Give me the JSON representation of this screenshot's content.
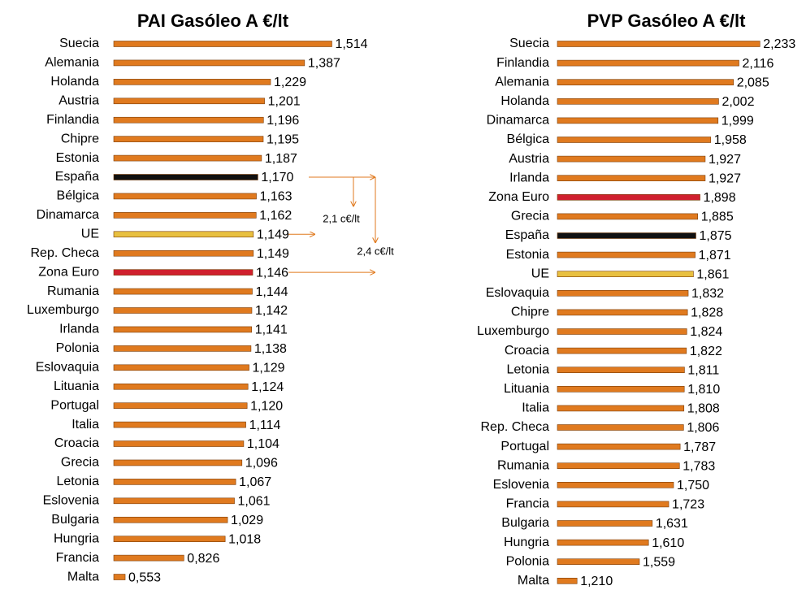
{
  "chart_data": [
    {
      "type": "bar",
      "orientation": "horizontal",
      "title": "PAI Gasóleo A €/lt",
      "categories": [
        "Suecia",
        "Alemania",
        "Holanda",
        "Austria",
        "Finlandia",
        "Chipre",
        "Estonia",
        "España",
        "Bélgica",
        "Dinamarca",
        "UE",
        "Rep. Checa",
        "Zona Euro",
        "Rumania",
        "Luxemburgo",
        "Irlanda",
        "Polonia",
        "Eslovaquia",
        "Lituania",
        "Portugal",
        "Italia",
        "Croacia",
        "Grecia",
        "Letonia",
        "Eslovenia",
        "Bulgaria",
        "Hungria",
        "Francia",
        "Malta"
      ],
      "values": [
        1.514,
        1.387,
        1.229,
        1.201,
        1.196,
        1.195,
        1.187,
        1.17,
        1.163,
        1.162,
        1.149,
        1.149,
        1.146,
        1.144,
        1.142,
        1.141,
        1.138,
        1.129,
        1.124,
        1.12,
        1.114,
        1.104,
        1.096,
        1.067,
        1.061,
        1.029,
        1.018,
        0.826,
        0.553
      ],
      "value_labels": [
        "1,514",
        "1,387",
        "1,229",
        "1,201",
        "1,196",
        "1,195",
        "1,187",
        "1,170",
        "1,163",
        "1,162",
        "1,149",
        "1,149",
        "1,146",
        "1,144",
        "1,142",
        "1,141",
        "1,138",
        "1,129",
        "1,124",
        "1,120",
        "1,114",
        "1,104",
        "1,096",
        "1,067",
        "1,061",
        "1,029",
        "1,018",
        "0,826",
        "0,553"
      ],
      "colors": [
        "#e07a1f",
        "#e07a1f",
        "#e07a1f",
        "#e07a1f",
        "#e07a1f",
        "#e07a1f",
        "#e07a1f",
        "#111111",
        "#e07a1f",
        "#e07a1f",
        "#e8c040",
        "#e07a1f",
        "#d0202e",
        "#e07a1f",
        "#e07a1f",
        "#e07a1f",
        "#e07a1f",
        "#e07a1f",
        "#e07a1f",
        "#e07a1f",
        "#e07a1f",
        "#e07a1f",
        "#e07a1f",
        "#e07a1f",
        "#e07a1f",
        "#e07a1f",
        "#e07a1f",
        "#e07a1f",
        "#e07a1f"
      ],
      "xlim": [
        0.5,
        1.55
      ],
      "annotations": [
        {
          "text": "2,1 c€/lt"
        },
        {
          "text": "2,4 c€/lt"
        }
      ]
    },
    {
      "type": "bar",
      "orientation": "horizontal",
      "title": "PVP Gasóleo A €/lt",
      "categories": [
        "Suecia",
        "Finlandia",
        "Alemania",
        "Holanda",
        "Dinamarca",
        "Bélgica",
        "Austria",
        "Irlanda",
        "Zona Euro",
        "Grecia",
        "España",
        "Estonia",
        "UE",
        "Eslovaquia",
        "Chipre",
        "Luxemburgo",
        "Croacia",
        "Letonia",
        "Lituania",
        "Italia",
        "Rep. Checa",
        "Portugal",
        "Rumania",
        "Eslovenia",
        "Francia",
        "Bulgaria",
        "Hungria",
        "Polonia",
        "Malta"
      ],
      "values": [
        2.233,
        2.116,
        2.085,
        2.002,
        1.999,
        1.958,
        1.927,
        1.927,
        1.898,
        1.885,
        1.875,
        1.871,
        1.861,
        1.832,
        1.828,
        1.824,
        1.822,
        1.811,
        1.81,
        1.808,
        1.806,
        1.787,
        1.783,
        1.75,
        1.723,
        1.631,
        1.61,
        1.559,
        1.21
      ],
      "value_labels": [
        "2,233",
        "2,116",
        "2,085",
        "2,002",
        "1,999",
        "1,958",
        "1,927",
        "1,927",
        "1,898",
        "1,885",
        "1,875",
        "1,871",
        "1,861",
        "1,832",
        "1,828",
        "1,824",
        "1,822",
        "1,811",
        "1,810",
        "1,808",
        "1,806",
        "1,787",
        "1,783",
        "1,750",
        "1,723",
        "1,631",
        "1,610",
        "1,559",
        "1,210"
      ],
      "colors": [
        "#e07a1f",
        "#e07a1f",
        "#e07a1f",
        "#e07a1f",
        "#e07a1f",
        "#e07a1f",
        "#e07a1f",
        "#e07a1f",
        "#d0202e",
        "#e07a1f",
        "#111111",
        "#e07a1f",
        "#e8c040",
        "#e07a1f",
        "#e07a1f",
        "#e07a1f",
        "#e07a1f",
        "#e07a1f",
        "#e07a1f",
        "#e07a1f",
        "#e07a1f",
        "#e07a1f",
        "#e07a1f",
        "#e07a1f",
        "#e07a1f",
        "#e07a1f",
        "#e07a1f",
        "#e07a1f",
        "#e07a1f"
      ],
      "xlim": [
        1.1,
        2.25
      ]
    }
  ]
}
